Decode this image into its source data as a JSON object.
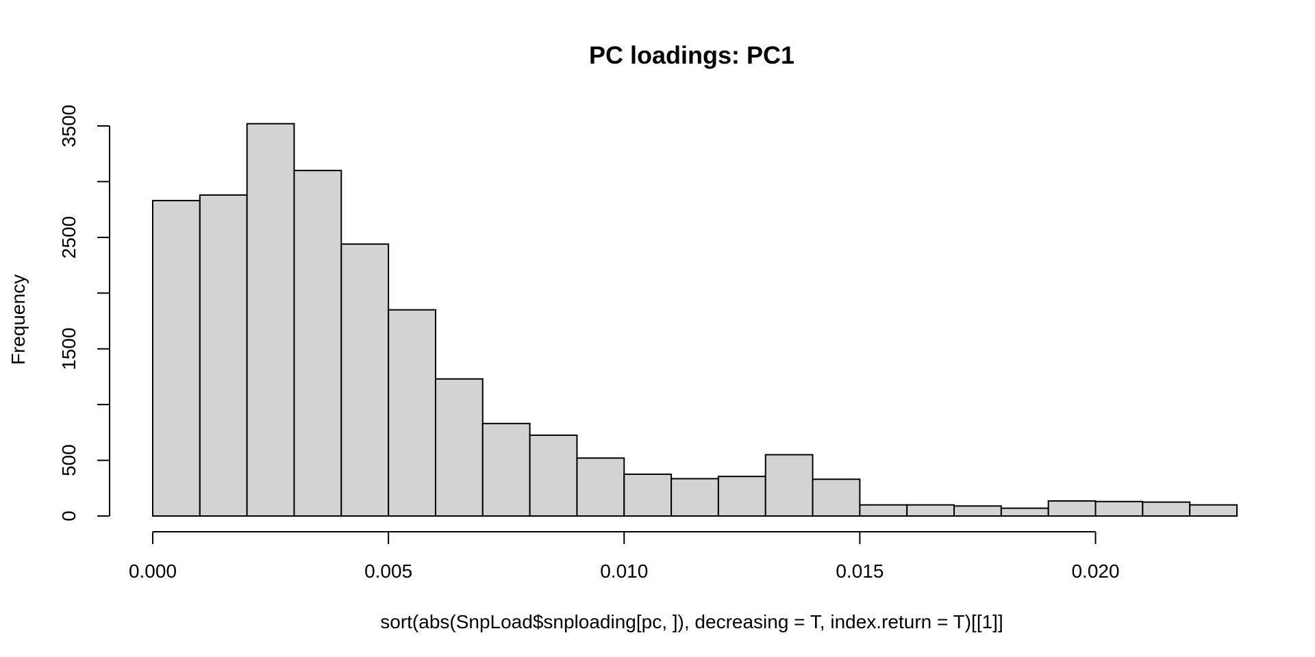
{
  "chart_data": {
    "type": "bar",
    "title": "PC loadings: PC1",
    "xlabel": "sort(abs(SnpLoad$snploading[pc, ]), decreasing = T, index.return = T)[[1]]",
    "ylabel": "Frequency",
    "bin_edges": [
      0.0,
      0.001,
      0.002,
      0.003,
      0.004,
      0.005,
      0.006,
      0.007,
      0.008,
      0.009,
      0.01,
      0.011,
      0.012,
      0.013,
      0.014,
      0.015,
      0.016,
      0.017,
      0.018,
      0.019,
      0.02,
      0.021,
      0.022,
      0.023
    ],
    "values": [
      2830,
      2880,
      3520,
      3100,
      2440,
      1850,
      1230,
      830,
      725,
      520,
      375,
      335,
      355,
      550,
      330,
      100,
      100,
      90,
      70,
      135,
      130,
      125,
      100
    ],
    "xlim": [
      0.0,
      0.023
    ],
    "ylim": [
      0,
      3500
    ],
    "x_ticks": [
      0.0,
      0.005,
      0.01,
      0.015,
      0.02
    ],
    "x_tick_labels": [
      "0.000",
      "0.005",
      "0.010",
      "0.015",
      "0.020"
    ],
    "y_ticks": [
      0,
      500,
      1000,
      1500,
      2000,
      2500,
      3000,
      3500
    ],
    "y_tick_labels": [
      "0",
      "500",
      "",
      "1500",
      "",
      "2500",
      "",
      "3500"
    ],
    "grid": false,
    "bar_color": "#d3d3d3",
    "edge_color": "#000000"
  }
}
